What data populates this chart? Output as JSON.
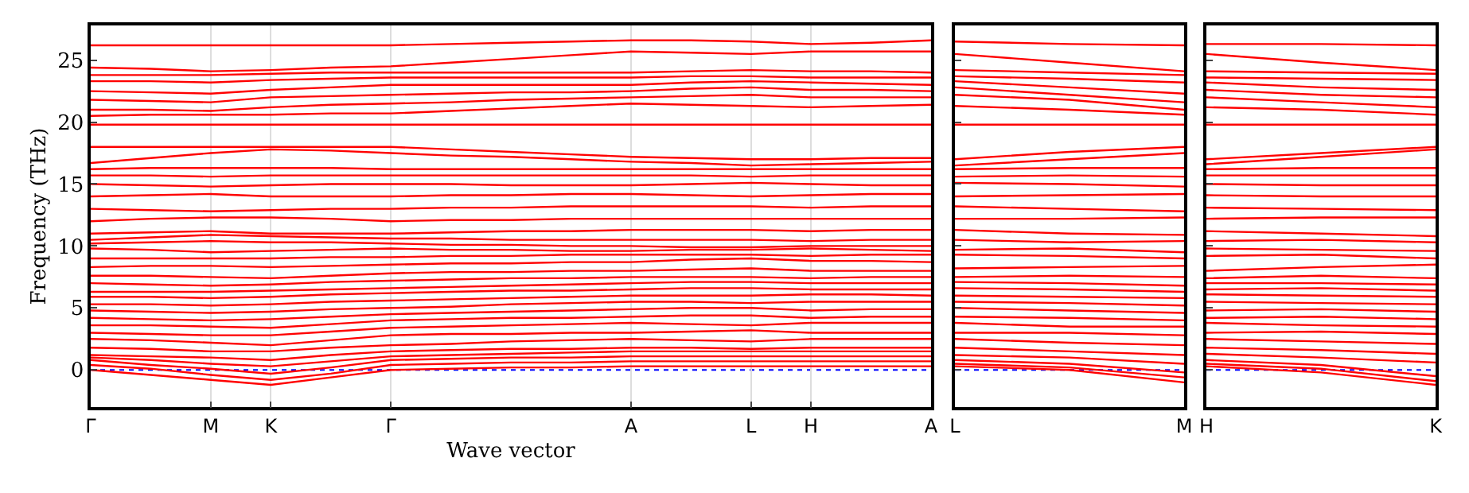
{
  "chart_data": [
    {
      "type": "line",
      "xlabel": "Wave vector",
      "ylabel": "Frequency (THz)",
      "grid": "x",
      "categories": [
        "Γ",
        null,
        "M",
        "K",
        null,
        "Γ",
        null,
        null,
        null,
        "A",
        null,
        "L",
        "H",
        null,
        "A"
      ],
      "ylim": [
        -3,
        27.8
      ],
      "yticks": [
        0,
        5,
        10,
        15,
        20,
        25
      ],
      "ref_lines": [
        {
          "axis": "y",
          "value": 0,
          "color": "#0000ff",
          "line_style": "dotted"
        }
      ],
      "series": [
        {
          "color": "#ff0000",
          "values": [
            0,
            -0.4,
            -0.8,
            -1.2,
            -0.6,
            0,
            0.1,
            0.2,
            0.2,
            0.3,
            0.3,
            0.3,
            0.3,
            0.3,
            0.3
          ]
        },
        {
          "color": "#ff0000",
          "values": [
            0.4,
            0.1,
            -0.4,
            -0.8,
            -0.3,
            0.4,
            0.5,
            0.6,
            0.6,
            0.7,
            0.7,
            0.7,
            0.7,
            0.7,
            0.7
          ]
        },
        {
          "color": "#ff0000",
          "values": [
            0.8,
            0.4,
            0.1,
            -0.3,
            0.2,
            0.8,
            0.9,
            1.0,
            1.0,
            1.1,
            1.1,
            1.1,
            1.1,
            1.1,
            1.1
          ]
        },
        {
          "color": "#ff0000",
          "values": [
            1.0,
            0.8,
            0.5,
            0.3,
            0.7,
            1.1,
            1.2,
            1.3,
            1.4,
            1.5,
            1.5,
            1.5,
            1.5,
            1.5,
            1.5
          ]
        },
        {
          "color": "#ff0000",
          "values": [
            1.2,
            1.1,
            1.0,
            0.8,
            1.2,
            1.5,
            1.6,
            1.7,
            1.7,
            1.8,
            1.8,
            1.7,
            1.8,
            1.8,
            1.8
          ]
        },
        {
          "color": "#ff0000",
          "values": [
            1.8,
            1.7,
            1.5,
            1.5,
            1.8,
            2.0,
            2.1,
            2.3,
            2.4,
            2.5,
            2.4,
            2.3,
            2.5,
            2.5,
            2.5
          ]
        },
        {
          "color": "#ff0000",
          "values": [
            2.5,
            2.4,
            2.2,
            2.0,
            2.4,
            2.8,
            2.9,
            2.9,
            3.0,
            3.0,
            3.1,
            3.2,
            3.0,
            3.0,
            3.0
          ]
        },
        {
          "color": "#ff0000",
          "values": [
            3.0,
            2.9,
            2.8,
            2.8,
            3.1,
            3.4,
            3.5,
            3.6,
            3.7,
            3.8,
            3.7,
            3.6,
            3.8,
            3.8,
            3.8
          ]
        },
        {
          "color": "#ff0000",
          "values": [
            3.6,
            3.6,
            3.5,
            3.4,
            3.7,
            4.0,
            4.1,
            4.2,
            4.2,
            4.3,
            4.4,
            4.4,
            4.2,
            4.3,
            4.3
          ]
        },
        {
          "color": "#ff0000",
          "values": [
            4.2,
            4.1,
            4.0,
            4.1,
            4.3,
            4.5,
            4.6,
            4.7,
            4.8,
            4.9,
            5.0,
            5.0,
            4.8,
            4.9,
            4.9
          ]
        },
        {
          "color": "#ff0000",
          "values": [
            4.8,
            4.7,
            4.6,
            4.7,
            4.9,
            5.0,
            5.1,
            5.3,
            5.4,
            5.5,
            5.5,
            5.4,
            5.5,
            5.5,
            5.5
          ]
        },
        {
          "color": "#ff0000",
          "values": [
            5.3,
            5.3,
            5.2,
            5.3,
            5.5,
            5.6,
            5.7,
            5.8,
            5.9,
            6.0,
            6.0,
            6.0,
            6.1,
            6.1,
            6.0
          ]
        },
        {
          "color": "#ff0000",
          "values": [
            5.9,
            5.9,
            5.8,
            5.9,
            6.1,
            6.2,
            6.3,
            6.4,
            6.4,
            6.5,
            6.6,
            6.6,
            6.5,
            6.5,
            6.5
          ]
        },
        {
          "color": "#ff0000",
          "values": [
            6.3,
            6.3,
            6.3,
            6.4,
            6.5,
            6.6,
            6.7,
            6.8,
            6.9,
            7.0,
            7.1,
            7.1,
            7.0,
            7.0,
            7.0
          ]
        },
        {
          "color": "#ff0000",
          "values": [
            7.0,
            6.9,
            6.8,
            6.9,
            7.1,
            7.2,
            7.3,
            7.4,
            7.4,
            7.5,
            7.5,
            7.5,
            7.4,
            7.5,
            7.5
          ]
        },
        {
          "color": "#ff0000",
          "values": [
            7.6,
            7.6,
            7.5,
            7.4,
            7.6,
            7.8,
            7.9,
            7.9,
            8.0,
            8.0,
            8.1,
            8.2,
            8.0,
            8.0,
            8.0
          ]
        },
        {
          "color": "#ff0000",
          "values": [
            8.3,
            8.4,
            8.4,
            8.3,
            8.4,
            8.5,
            8.6,
            8.6,
            8.7,
            8.7,
            8.9,
            9.0,
            8.8,
            8.8,
            8.7
          ]
        },
        {
          "color": "#ff0000",
          "values": [
            9.0,
            9.0,
            9.0,
            9.0,
            9.1,
            9.1,
            9.2,
            9.2,
            9.3,
            9.3,
            9.3,
            9.3,
            9.2,
            9.3,
            9.3
          ]
        },
        {
          "color": "#ff0000",
          "values": [
            9.8,
            9.7,
            9.5,
            9.6,
            9.7,
            9.8,
            9.7,
            9.7,
            9.6,
            9.6,
            9.7,
            9.7,
            9.8,
            9.7,
            9.6
          ]
        },
        {
          "color": "#ff0000",
          "values": [
            10.2,
            10.3,
            10.4,
            10.3,
            10.3,
            10.2,
            10.1,
            10.1,
            10.0,
            10.0,
            9.9,
            9.9,
            10.0,
            10.0,
            10.0
          ]
        },
        {
          "color": "#ff0000",
          "values": [
            10.5,
            10.7,
            10.9,
            10.8,
            10.7,
            10.6,
            10.6,
            10.5,
            10.5,
            10.5,
            10.5,
            10.5,
            10.4,
            10.5,
            10.5
          ]
        },
        {
          "color": "#ff0000",
          "values": [
            11.0,
            11.1,
            11.2,
            11.0,
            11.0,
            11.0,
            11.1,
            11.2,
            11.2,
            11.3,
            11.3,
            11.3,
            11.2,
            11.3,
            11.3
          ]
        },
        {
          "color": "#ff0000",
          "values": [
            12.0,
            12.2,
            12.3,
            12.3,
            12.2,
            12.0,
            12.1,
            12.1,
            12.2,
            12.2,
            12.2,
            12.2,
            12.2,
            12.2,
            12.2
          ]
        },
        {
          "color": "#ff0000",
          "values": [
            13.0,
            12.9,
            12.8,
            12.9,
            13.0,
            13.0,
            13.1,
            13.1,
            13.2,
            13.2,
            13.2,
            13.2,
            13.1,
            13.2,
            13.2
          ]
        },
        {
          "color": "#ff0000",
          "values": [
            14.0,
            14.1,
            14.2,
            14.0,
            14.0,
            14.0,
            14.1,
            14.1,
            14.2,
            14.2,
            14.1,
            14.0,
            14.1,
            14.2,
            14.2
          ]
        },
        {
          "color": "#ff0000",
          "values": [
            15.0,
            14.9,
            14.8,
            14.9,
            15.0,
            15.0,
            15.0,
            14.9,
            14.9,
            14.9,
            15.0,
            15.1,
            15.0,
            14.9,
            14.9
          ]
        },
        {
          "color": "#ff0000",
          "values": [
            15.7,
            15.7,
            15.6,
            15.7,
            15.7,
            15.7,
            15.7,
            15.7,
            15.7,
            15.7,
            15.7,
            15.6,
            15.7,
            15.7,
            15.7
          ]
        },
        {
          "color": "#ff0000",
          "values": [
            16.2,
            16.3,
            16.3,
            16.3,
            16.3,
            16.2,
            16.2,
            16.2,
            16.2,
            16.2,
            16.2,
            16.2,
            16.2,
            16.2,
            16.2
          ]
        },
        {
          "color": "#ff0000",
          "values": [
            16.7,
            17.1,
            17.5,
            17.8,
            17.7,
            17.5,
            17.3,
            17.2,
            17.0,
            16.8,
            16.7,
            16.5,
            16.6,
            16.7,
            16.8
          ]
        },
        {
          "color": "#ff0000",
          "values": [
            18.0,
            18.0,
            18.0,
            18.0,
            18.0,
            18.0,
            17.8,
            17.6,
            17.4,
            17.2,
            17.1,
            17.0,
            17.0,
            17.1,
            17.1
          ]
        },
        {
          "color": "#ff0000",
          "values": [
            19.8,
            19.8,
            19.8,
            19.8,
            19.8,
            19.8,
            19.8,
            19.8,
            19.8,
            19.8,
            19.8,
            19.8,
            19.8,
            19.8,
            19.8
          ]
        },
        {
          "color": "#ff0000",
          "values": [
            20.5,
            20.6,
            20.6,
            20.6,
            20.7,
            20.7,
            20.9,
            21.1,
            21.3,
            21.5,
            21.4,
            21.3,
            21.2,
            21.3,
            21.4
          ]
        },
        {
          "color": "#ff0000",
          "values": [
            21.0,
            21.0,
            20.9,
            21.2,
            21.4,
            21.5,
            21.6,
            21.8,
            21.9,
            22.0,
            22.1,
            22.2,
            22.0,
            22.0,
            22.0
          ]
        },
        {
          "color": "#ff0000",
          "values": [
            21.8,
            21.7,
            21.6,
            22.0,
            22.1,
            22.2,
            22.3,
            22.4,
            22.4,
            22.5,
            22.7,
            22.8,
            22.6,
            22.6,
            22.5
          ]
        },
        {
          "color": "#ff0000",
          "values": [
            22.5,
            22.4,
            22.3,
            22.6,
            22.8,
            23.0,
            23.0,
            23.0,
            23.0,
            23.0,
            23.2,
            23.3,
            23.2,
            23.1,
            23.0
          ]
        },
        {
          "color": "#ff0000",
          "values": [
            23.3,
            23.3,
            23.2,
            23.4,
            23.5,
            23.6,
            23.6,
            23.6,
            23.6,
            23.6,
            23.7,
            23.7,
            23.6,
            23.6,
            23.6
          ]
        },
        {
          "color": "#ff0000",
          "values": [
            23.8,
            23.8,
            23.8,
            23.9,
            24.0,
            24.0,
            24.0,
            24.0,
            24.0,
            24.0,
            24.1,
            24.2,
            24.1,
            24.1,
            24.0
          ]
        },
        {
          "color": "#ff0000",
          "values": [
            24.4,
            24.3,
            24.1,
            24.2,
            24.4,
            24.5,
            24.8,
            25.1,
            25.4,
            25.7,
            25.6,
            25.5,
            25.7,
            25.7,
            25.7
          ]
        },
        {
          "color": "#ff0000",
          "values": [
            26.2,
            26.2,
            26.2,
            26.2,
            26.2,
            26.2,
            26.3,
            26.4,
            26.5,
            26.6,
            26.6,
            26.5,
            26.3,
            26.4,
            26.6
          ]
        }
      ]
    },
    {
      "type": "line",
      "tick_labels": "x",
      "categories": [
        "L",
        null,
        "M"
      ],
      "ylim": [
        -3,
        27.8
      ],
      "yticks": [
        0,
        5,
        10,
        15,
        20,
        25
      ],
      "ref_lines": [
        {
          "axis": "y",
          "value": 0,
          "color": "#0000ff",
          "line_style": "dotted"
        }
      ],
      "series": [
        {
          "color": "#ff0000",
          "values": [
            0.3,
            0,
            -1.0
          ]
        },
        {
          "color": "#ff0000",
          "values": [
            0.5,
            0.2,
            -0.6
          ]
        },
        {
          "color": "#ff0000",
          "values": [
            0.8,
            0.5,
            -0.2
          ]
        },
        {
          "color": "#ff0000",
          "values": [
            1.2,
            1.0,
            0.5
          ]
        },
        {
          "color": "#ff0000",
          "values": [
            1.8,
            1.5,
            1.2
          ]
        },
        {
          "color": "#ff0000",
          "values": [
            2.5,
            2.2,
            2.0
          ]
        },
        {
          "color": "#ff0000",
          "values": [
            3.0,
            3.0,
            2.8
          ]
        },
        {
          "color": "#ff0000",
          "values": [
            3.8,
            3.5,
            3.5
          ]
        },
        {
          "color": "#ff0000",
          "values": [
            4.3,
            4.2,
            4.0
          ]
        },
        {
          "color": "#ff0000",
          "values": [
            5.0,
            4.8,
            4.6
          ]
        },
        {
          "color": "#ff0000",
          "values": [
            5.5,
            5.4,
            5.2
          ]
        },
        {
          "color": "#ff0000",
          "values": [
            6.0,
            5.9,
            5.8
          ]
        },
        {
          "color": "#ff0000",
          "values": [
            6.6,
            6.5,
            6.3
          ]
        },
        {
          "color": "#ff0000",
          "values": [
            7.1,
            7.0,
            6.8
          ]
        },
        {
          "color": "#ff0000",
          "values": [
            7.5,
            7.6,
            7.5
          ]
        },
        {
          "color": "#ff0000",
          "values": [
            8.2,
            8.3,
            8.4
          ]
        },
        {
          "color": "#ff0000",
          "values": [
            9.3,
            9.2,
            9.0
          ]
        },
        {
          "color": "#ff0000",
          "values": [
            9.7,
            9.8,
            9.5
          ]
        },
        {
          "color": "#ff0000",
          "values": [
            10.5,
            10.3,
            10.4
          ]
        },
        {
          "color": "#ff0000",
          "values": [
            11.3,
            11.0,
            10.9
          ]
        },
        {
          "color": "#ff0000",
          "values": [
            12.2,
            12.2,
            12.3
          ]
        },
        {
          "color": "#ff0000",
          "values": [
            13.2,
            13.0,
            12.8
          ]
        },
        {
          "color": "#ff0000",
          "values": [
            14.0,
            14.1,
            14.2
          ]
        },
        {
          "color": "#ff0000",
          "values": [
            15.1,
            15.0,
            14.8
          ]
        },
        {
          "color": "#ff0000",
          "values": [
            15.6,
            15.7,
            15.6
          ]
        },
        {
          "color": "#ff0000",
          "values": [
            16.2,
            16.3,
            16.3
          ]
        },
        {
          "color": "#ff0000",
          "values": [
            16.5,
            17.0,
            17.5
          ]
        },
        {
          "color": "#ff0000",
          "values": [
            17.0,
            17.6,
            18.0
          ]
        },
        {
          "color": "#ff0000",
          "values": [
            19.8,
            19.8,
            19.8
          ]
        },
        {
          "color": "#ff0000",
          "values": [
            21.3,
            21.0,
            20.6
          ]
        },
        {
          "color": "#ff0000",
          "values": [
            22.2,
            21.8,
            21.0
          ]
        },
        {
          "color": "#ff0000",
          "values": [
            22.8,
            22.2,
            21.6
          ]
        },
        {
          "color": "#ff0000",
          "values": [
            23.3,
            22.8,
            22.3
          ]
        },
        {
          "color": "#ff0000",
          "values": [
            23.7,
            23.5,
            23.2
          ]
        },
        {
          "color": "#ff0000",
          "values": [
            24.2,
            24.0,
            23.8
          ]
        },
        {
          "color": "#ff0000",
          "values": [
            25.5,
            24.8,
            24.1
          ]
        },
        {
          "color": "#ff0000",
          "values": [
            26.5,
            26.3,
            26.2
          ]
        }
      ]
    },
    {
      "type": "line",
      "tick_labels": "x",
      "categories": [
        "H",
        null,
        "K"
      ],
      "ylim": [
        -3,
        27.8
      ],
      "yticks": [
        0,
        5,
        10,
        15,
        20,
        25
      ],
      "ref_lines": [
        {
          "axis": "y",
          "value": 0,
          "color": "#0000ff",
          "line_style": "dotted"
        }
      ],
      "series": [
        {
          "color": "#ff0000",
          "values": [
            0.3,
            -0.2,
            -1.2
          ]
        },
        {
          "color": "#ff0000",
          "values": [
            0.5,
            0.1,
            -0.9
          ]
        },
        {
          "color": "#ff0000",
          "values": [
            0.8,
            0.4,
            -0.5
          ]
        },
        {
          "color": "#ff0000",
          "values": [
            1.3,
            1.0,
            0.6
          ]
        },
        {
          "color": "#ff0000",
          "values": [
            1.8,
            1.6,
            1.3
          ]
        },
        {
          "color": "#ff0000",
          "values": [
            2.5,
            2.3,
            2.1
          ]
        },
        {
          "color": "#ff0000",
          "values": [
            3.0,
            3.1,
            2.9
          ]
        },
        {
          "color": "#ff0000",
          "values": [
            3.8,
            3.6,
            3.5
          ]
        },
        {
          "color": "#ff0000",
          "values": [
            4.2,
            4.3,
            4.1
          ]
        },
        {
          "color": "#ff0000",
          "values": [
            4.8,
            4.9,
            4.7
          ]
        },
        {
          "color": "#ff0000",
          "values": [
            5.5,
            5.4,
            5.3
          ]
        },
        {
          "color": "#ff0000",
          "values": [
            6.1,
            6.0,
            5.9
          ]
        },
        {
          "color": "#ff0000",
          "values": [
            6.5,
            6.6,
            6.4
          ]
        },
        {
          "color": "#ff0000",
          "values": [
            7.0,
            7.0,
            6.9
          ]
        },
        {
          "color": "#ff0000",
          "values": [
            7.4,
            7.6,
            7.4
          ]
        },
        {
          "color": "#ff0000",
          "values": [
            8.0,
            8.3,
            8.5
          ]
        },
        {
          "color": "#ff0000",
          "values": [
            9.2,
            9.3,
            9.0
          ]
        },
        {
          "color": "#ff0000",
          "values": [
            9.8,
            9.7,
            9.6
          ]
        },
        {
          "color": "#ff0000",
          "values": [
            10.4,
            10.5,
            10.3
          ]
        },
        {
          "color": "#ff0000",
          "values": [
            11.2,
            11.0,
            10.8
          ]
        },
        {
          "color": "#ff0000",
          "values": [
            12.2,
            12.3,
            12.3
          ]
        },
        {
          "color": "#ff0000",
          "values": [
            13.1,
            13.0,
            12.9
          ]
        },
        {
          "color": "#ff0000",
          "values": [
            14.1,
            14.0,
            14.0
          ]
        },
        {
          "color": "#ff0000",
          "values": [
            15.0,
            14.9,
            14.9
          ]
        },
        {
          "color": "#ff0000",
          "values": [
            15.7,
            15.7,
            15.7
          ]
        },
        {
          "color": "#ff0000",
          "values": [
            16.2,
            16.3,
            16.3
          ]
        },
        {
          "color": "#ff0000",
          "values": [
            16.6,
            17.2,
            17.8
          ]
        },
        {
          "color": "#ff0000",
          "values": [
            17.0,
            17.5,
            18.0
          ]
        },
        {
          "color": "#ff0000",
          "values": [
            19.8,
            19.8,
            19.8
          ]
        },
        {
          "color": "#ff0000",
          "values": [
            21.2,
            21.0,
            20.6
          ]
        },
        {
          "color": "#ff0000",
          "values": [
            22.0,
            21.6,
            21.2
          ]
        },
        {
          "color": "#ff0000",
          "values": [
            22.6,
            22.2,
            22.0
          ]
        },
        {
          "color": "#ff0000",
          "values": [
            23.2,
            22.8,
            22.6
          ]
        },
        {
          "color": "#ff0000",
          "values": [
            23.6,
            23.5,
            23.4
          ]
        },
        {
          "color": "#ff0000",
          "values": [
            24.1,
            24.0,
            23.9
          ]
        },
        {
          "color": "#ff0000",
          "values": [
            25.5,
            24.8,
            24.2
          ]
        },
        {
          "color": "#ff0000",
          "values": [
            26.3,
            26.3,
            26.2
          ]
        }
      ]
    }
  ]
}
